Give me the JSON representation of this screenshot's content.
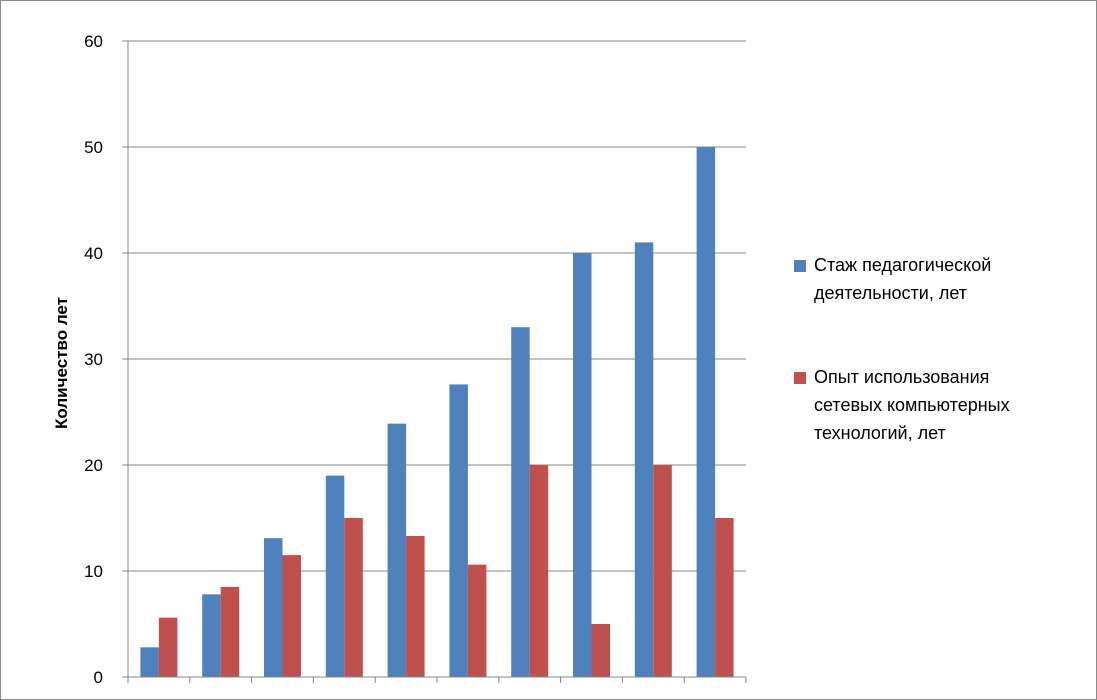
{
  "chart_data": {
    "type": "bar",
    "categories": [
      "",
      "",
      "",
      "",
      "",
      "",
      "",
      "",
      "",
      ""
    ],
    "ylabel": "Количество лет",
    "xlabel": "",
    "ylim": [
      0,
      60
    ],
    "yticks": [
      0,
      10,
      20,
      30,
      40,
      50,
      60
    ],
    "grid": true,
    "legend_position": "right",
    "series": [
      {
        "name_lines": [
          "Стаж педагогической",
          "деятельности, лет"
        ],
        "color": "#4f81bd",
        "values": [
          2.8,
          7.8,
          13.1,
          19,
          23.9,
          27.6,
          33,
          40,
          41,
          50
        ]
      },
      {
        "name_lines": [
          "Опыт использования",
          "сетевых компьютерных",
          "технологий, лет"
        ],
        "color": "#c0504d",
        "values": [
          5.6,
          8.5,
          11.5,
          15,
          13.3,
          10.6,
          20,
          5,
          20,
          15
        ]
      }
    ]
  }
}
